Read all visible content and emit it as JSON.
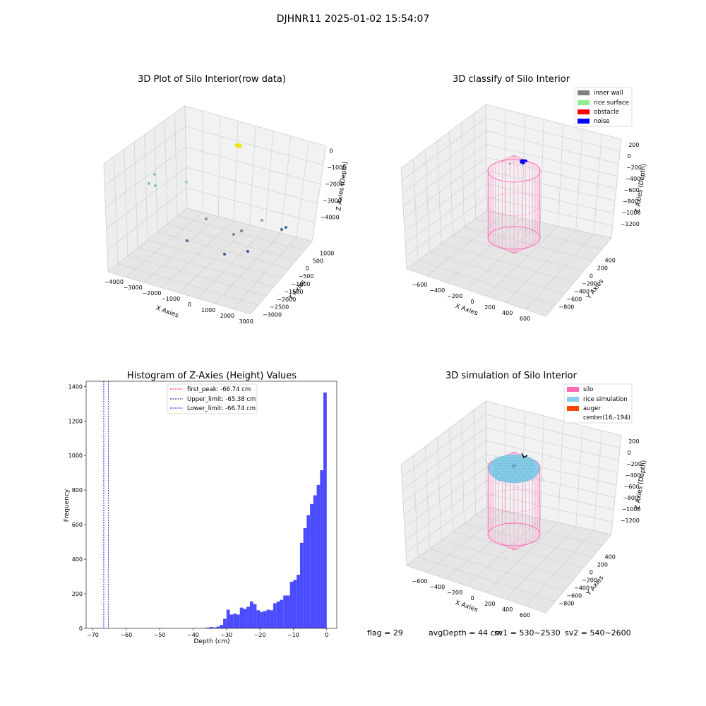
{
  "suptitle": "DJHNR11 2025-01-02 15:54:07",
  "footer": {
    "flag": "flag = 29",
    "avg_depth": "avgDepth = 44 cm",
    "sv1": "sv1 = 530~2530",
    "sv2": "sv2 = 540~2600"
  },
  "colors": {
    "histogram": "#4b4bff",
    "inner_wall": "#808080",
    "rice_surface": "#90ee90",
    "obstacle": "#ff0000",
    "noise": "#0000ff",
    "silo": "#ff69b4",
    "rice_simulation": "#87ceeb",
    "auger": "#ff4500"
  },
  "chart_data": [
    {
      "type": "scatter",
      "title": "3D Plot of Silo Interior(row data)",
      "xlabel": "X Axies",
      "ylabel": "Y Axies",
      "zlabel": "Z Axies (Depth)",
      "xlim": [
        -4300,
        3300
      ],
      "ylim": [
        -3100,
        1200
      ],
      "zlim": [
        -4500,
        200
      ],
      "x_ticks": [
        "−4000",
        "−3000",
        "−2000",
        "−1000",
        "0",
        "1000",
        "2000",
        "3000"
      ],
      "y_ticks": [
        "1000",
        "500",
        "0",
        "−500",
        "−1000",
        "−1500",
        "−2000",
        "−2500",
        "−3000"
      ],
      "z_ticks": [
        "0",
        "−1000",
        "−2000",
        "−3000",
        "−4000"
      ],
      "grid": true
    },
    {
      "type": "scatter",
      "title": "3D classify of Silo Interior",
      "xlabel": "X Axies",
      "ylabel": "Y Axies",
      "zlabel": "Z Axies (Depth)",
      "xlim": [
        -700,
        700
      ],
      "ylim": [
        -900,
        500
      ],
      "zlim": [
        -1300,
        250
      ],
      "x_ticks": [
        "−600",
        "−400",
        "−200",
        "0",
        "200",
        "400",
        "600"
      ],
      "y_ticks": [
        "400",
        "200",
        "0",
        "−200",
        "−400",
        "−600",
        "−800"
      ],
      "z_ticks": [
        "200",
        "0",
        "−200",
        "−400",
        "−600",
        "−800",
        "−1000",
        "−1200"
      ],
      "legend": [
        "inner wall",
        "rice surface",
        "obstacle",
        "noise"
      ],
      "legend_placement": "top-right",
      "grid": true
    },
    {
      "type": "bar",
      "title": "Histogram of Z-Axies (Height) Values",
      "xlabel": "Depth (cm)",
      "ylabel": "Frequency",
      "xlim": [
        -72,
        3
      ],
      "ylim": [
        0,
        1430
      ],
      "x_ticks": [
        -70,
        -60,
        -50,
        -40,
        -30,
        -20,
        -10,
        0
      ],
      "y_ticks": [
        0,
        200,
        400,
        600,
        800,
        1000,
        1200,
        1400
      ],
      "bins": [
        [
          -49,
          -48,
          2
        ],
        [
          -48,
          -47,
          5
        ],
        [
          -47,
          -46,
          8
        ],
        [
          -46,
          -45,
          5
        ],
        [
          -45,
          -44,
          10
        ],
        [
          -44,
          -43,
          20
        ],
        [
          -43,
          -42,
          55
        ],
        [
          -42,
          -41,
          108
        ],
        [
          -41,
          -40,
          80
        ],
        [
          -40,
          -39,
          85
        ],
        [
          -39,
          -38,
          80
        ],
        [
          -38,
          -37,
          120
        ],
        [
          -37,
          -36,
          112
        ],
        [
          -36,
          -35,
          125
        ],
        [
          -35,
          -34,
          155
        ],
        [
          -34,
          -33,
          140
        ],
        [
          -33,
          -32,
          105
        ],
        [
          -32,
          -31,
          95
        ],
        [
          -31,
          -30,
          100
        ],
        [
          -30,
          -29,
          108
        ],
        [
          -29,
          -28,
          105
        ],
        [
          -28,
          -27,
          145
        ],
        [
          -27,
          -26,
          155
        ],
        [
          -26,
          -25,
          165
        ],
        [
          -25,
          -24,
          190
        ],
        [
          -24,
          -23,
          190
        ],
        [
          -23,
          -22,
          270
        ],
        [
          -22,
          -21,
          280
        ],
        [
          -21,
          -20,
          310
        ],
        [
          -20,
          -19,
          495
        ],
        [
          -19,
          -18,
          580
        ],
        [
          -18,
          -17,
          655
        ],
        [
          -17,
          -16,
          720
        ],
        [
          -16,
          -15,
          770
        ],
        [
          -15,
          -14,
          830
        ],
        [
          -14,
          -13,
          915
        ],
        [
          -13,
          -12,
          1365
        ]
      ],
      "bin_axis_offset": 12,
      "vlines": [
        {
          "label": "first_peak: -66.74 cm",
          "x": -66.74,
          "color": "#ff0000"
        },
        {
          "label": "Upper_limit: -65.38 cm",
          "x": -65.38,
          "color": "#00008b"
        },
        {
          "label": "Lower_limit: -66.74 cm",
          "x": -66.74,
          "color": "#0000ff"
        }
      ],
      "legend_placement": "upper center"
    },
    {
      "type": "scatter",
      "title": "3D simulation of Silo Interior",
      "xlabel": "X Axies",
      "ylabel": "Y Axies",
      "zlabel": "Z Axies (Depth)",
      "xlim": [
        -700,
        700
      ],
      "ylim": [
        -900,
        500
      ],
      "zlim": [
        -1300,
        250
      ],
      "x_ticks": [
        "−600",
        "−400",
        "−200",
        "0",
        "200",
        "400",
        "600"
      ],
      "y_ticks": [
        "400",
        "200",
        "0",
        "−200",
        "−400",
        "−600",
        "−800"
      ],
      "z_ticks": [
        "200",
        "0",
        "−200",
        "−400",
        "−600",
        "−800",
        "−1000",
        "−1200"
      ],
      "legend": [
        "silo",
        "rice simulation",
        "auger",
        "center(16,-194)"
      ],
      "legend_placement": "top-right",
      "grid": true
    }
  ]
}
